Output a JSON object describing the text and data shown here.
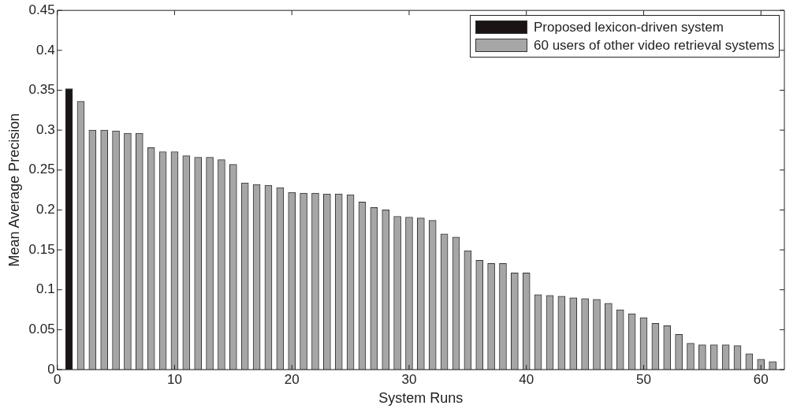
{
  "chart_data": {
    "type": "bar",
    "xlabel": "System Runs",
    "ylabel": "Mean Average Precision",
    "xlim": [
      0,
      62
    ],
    "xticks": [
      0,
      10,
      20,
      30,
      40,
      50,
      60
    ],
    "ylim": [
      0,
      0.45
    ],
    "yticks": [
      0,
      0.05,
      0.1,
      0.15,
      0.2,
      0.25,
      0.3,
      0.35,
      0.4,
      0.45
    ],
    "grid": false,
    "legend": "top right",
    "series": [
      {
        "name": "Proposed lexicon-driven system",
        "color": "#1a1414",
        "x": [
          1
        ],
        "values": [
          0.352
        ]
      },
      {
        "name": "60 users of other video retrieval systems",
        "color": "#a6a6a6",
        "x": [
          2,
          3,
          4,
          5,
          6,
          7,
          8,
          9,
          10,
          11,
          12,
          13,
          14,
          15,
          16,
          17,
          18,
          19,
          20,
          21,
          22,
          23,
          24,
          25,
          26,
          27,
          28,
          29,
          30,
          31,
          32,
          33,
          34,
          35,
          36,
          37,
          38,
          39,
          40,
          41,
          42,
          43,
          44,
          45,
          46,
          47,
          48,
          49,
          50,
          51,
          52,
          53,
          54,
          55,
          56,
          57,
          58,
          59,
          60,
          61
        ],
        "values": [
          0.336,
          0.3,
          0.3,
          0.299,
          0.296,
          0.296,
          0.278,
          0.273,
          0.273,
          0.268,
          0.266,
          0.266,
          0.263,
          0.257,
          0.234,
          0.232,
          0.231,
          0.228,
          0.222,
          0.221,
          0.221,
          0.22,
          0.22,
          0.219,
          0.21,
          0.203,
          0.2,
          0.192,
          0.191,
          0.19,
          0.187,
          0.17,
          0.166,
          0.149,
          0.137,
          0.133,
          0.133,
          0.121,
          0.121,
          0.094,
          0.093,
          0.092,
          0.09,
          0.089,
          0.088,
          0.083,
          0.075,
          0.07,
          0.065,
          0.058,
          0.055,
          0.044,
          0.033,
          0.031,
          0.031,
          0.031,
          0.03,
          0.02,
          0.013,
          0.01
        ]
      }
    ]
  }
}
